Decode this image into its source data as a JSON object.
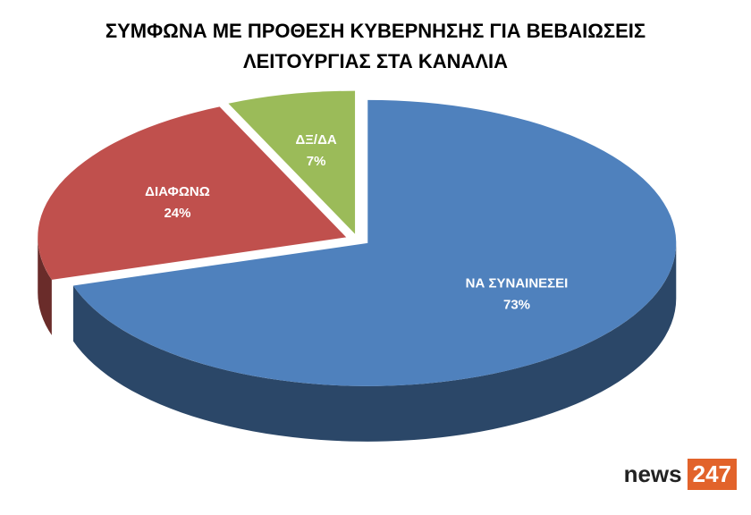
{
  "chart_data": {
    "type": "pie",
    "title": "ΣΥΜΦΩΝΑ ΜΕ ΠΡΟΘΕΣΗ ΚΥΒΕΡΝΗΣΗΣ ΓΙΑ ΒΕΒΑΙΩΣΕΙΣ ΛΕΙΤΟΥΡΓΙΑΣ ΣΤΑ ΚΑΝΑΛΙΑ",
    "categories": [
      "ΝΑ ΣΥΝΑΙΝΕΣΕΙ",
      "ΔΙΑΦΩΝΩ",
      "ΔΞ/ΔΑ"
    ],
    "values": [
      73,
      24,
      7
    ],
    "value_labels": [
      "73%",
      "24%",
      "7%"
    ],
    "colors": [
      "#4f81bd",
      "#c0504d",
      "#9bbb59"
    ]
  },
  "logo": {
    "text": "news",
    "badge": "247"
  }
}
